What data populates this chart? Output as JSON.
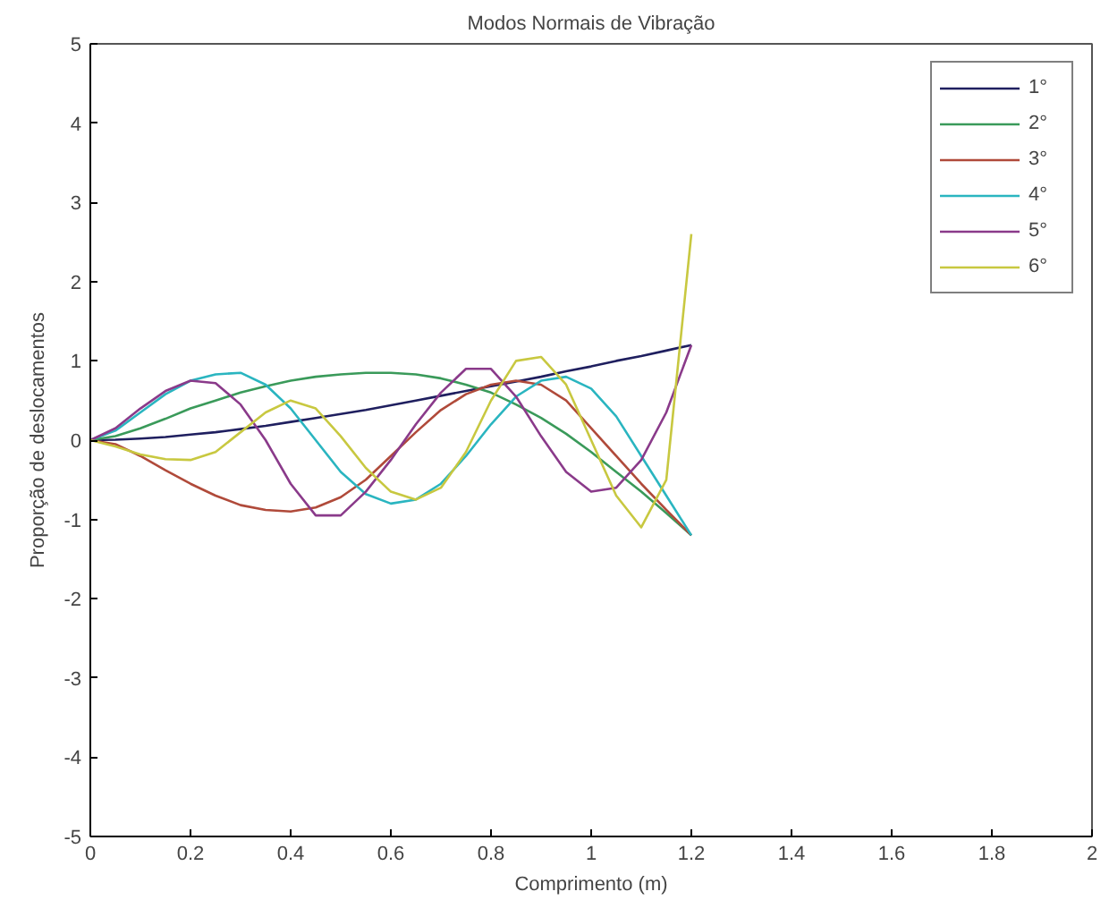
{
  "chart_data": {
    "type": "line",
    "title": "Modos Normais de Vibração",
    "xlabel": "Comprimento (m)",
    "ylabel": "Proporção de deslocamentos",
    "x": [
      0,
      0.05,
      0.1,
      0.15,
      0.2,
      0.25,
      0.3,
      0.35,
      0.4,
      0.45,
      0.5,
      0.55,
      0.6,
      0.65,
      0.7,
      0.75,
      0.8,
      0.85,
      0.9,
      0.95,
      1.0,
      1.05,
      1.1,
      1.15,
      1.2
    ],
    "series": [
      {
        "name": "1°",
        "color": "#1f1f5f",
        "values": [
          0,
          0.005,
          0.02,
          0.04,
          0.07,
          0.1,
          0.14,
          0.18,
          0.23,
          0.28,
          0.33,
          0.38,
          0.44,
          0.5,
          0.56,
          0.62,
          0.68,
          0.74,
          0.8,
          0.87,
          0.93,
          1.0,
          1.06,
          1.13,
          1.2
        ]
      },
      {
        "name": "2°",
        "color": "#3a9a5a",
        "values": [
          0,
          0.05,
          0.15,
          0.27,
          0.4,
          0.5,
          0.6,
          0.68,
          0.75,
          0.8,
          0.83,
          0.85,
          0.85,
          0.83,
          0.78,
          0.7,
          0.6,
          0.45,
          0.28,
          0.08,
          -0.15,
          -0.4,
          -0.65,
          -0.92,
          -1.2
        ]
      },
      {
        "name": "3°",
        "color": "#b04a3a",
        "values": [
          0,
          -0.05,
          -0.2,
          -0.38,
          -0.55,
          -0.7,
          -0.82,
          -0.88,
          -0.9,
          -0.85,
          -0.72,
          -0.5,
          -0.2,
          0.1,
          0.38,
          0.58,
          0.7,
          0.75,
          0.7,
          0.5,
          0.15,
          -0.2,
          -0.55,
          -0.88,
          -1.2
        ]
      },
      {
        "name": "4°",
        "color": "#2ab5c0",
        "values": [
          0,
          0.12,
          0.35,
          0.58,
          0.75,
          0.83,
          0.85,
          0.7,
          0.4,
          0.0,
          -0.4,
          -0.68,
          -0.8,
          -0.75,
          -0.55,
          -0.2,
          0.2,
          0.55,
          0.75,
          0.8,
          0.65,
          0.3,
          -0.2,
          -0.7,
          -1.2
        ]
      },
      {
        "name": "5°",
        "color": "#8a3a8a",
        "values": [
          0,
          0.15,
          0.4,
          0.62,
          0.75,
          0.72,
          0.45,
          0.0,
          -0.55,
          -0.95,
          -0.95,
          -0.65,
          -0.25,
          0.2,
          0.6,
          0.9,
          0.9,
          0.55,
          0.05,
          -0.4,
          -0.65,
          -0.6,
          -0.25,
          0.35,
          1.2
        ]
      },
      {
        "name": "6°",
        "color": "#c8c840",
        "values": [
          0,
          -0.08,
          -0.18,
          -0.24,
          -0.25,
          -0.15,
          0.1,
          0.35,
          0.5,
          0.4,
          0.05,
          -0.35,
          -0.65,
          -0.75,
          -0.6,
          -0.15,
          0.5,
          1.0,
          1.05,
          0.7,
          0.0,
          -0.7,
          -1.1,
          -0.5,
          2.6
        ]
      }
    ],
    "xlim": [
      0,
      2
    ],
    "xticks": [
      0,
      0.2,
      0.4,
      0.6,
      0.8,
      1,
      1.2,
      1.4,
      1.6,
      1.8,
      2
    ],
    "ylim": [
      -5,
      5
    ],
    "yticks": [
      -5,
      -4,
      -3,
      -2,
      -1,
      0,
      1,
      2,
      3,
      4,
      5
    ],
    "legend": "top right",
    "grid": false
  }
}
